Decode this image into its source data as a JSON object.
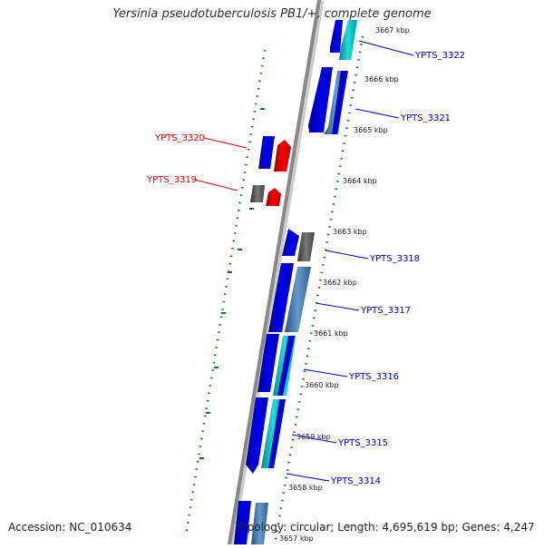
{
  "title": "Yersinia pseudotuberculosis PB1/+, complete genome",
  "accession": "Accession: NC_010634",
  "topology": "Topology: circular; Length: 4,695,619 bp; Genes: 4,247",
  "ticks": [
    "3667 kbp",
    "3666 kbp",
    "3665 kbp",
    "3664 kbp",
    "3663 kbp",
    "3662 kbp",
    "3661 kbp",
    "3660 kbp",
    "3659 kbp",
    "3658 kbp",
    "3657 kbp"
  ],
  "genes_reverse": [
    "YPTS_3320",
    "YPTS_3319"
  ],
  "genes_forward": [
    "YPTS_3322",
    "YPTS_3321",
    "YPTS_3318",
    "YPTS_3317",
    "YPTS_3316",
    "YPTS_3315",
    "YPTS_3314"
  ],
  "colors": {
    "forward_label": "#0000cc",
    "reverse_label": "#dd0000",
    "cds_blue": "#0000ee",
    "cds_red": "#ee0000",
    "cds_grey": "#666666",
    "cds_cyan": "#00cccc",
    "cds_steel": "#4a7fb0",
    "backbone": "#888888",
    "gc_dots": "#117711"
  }
}
